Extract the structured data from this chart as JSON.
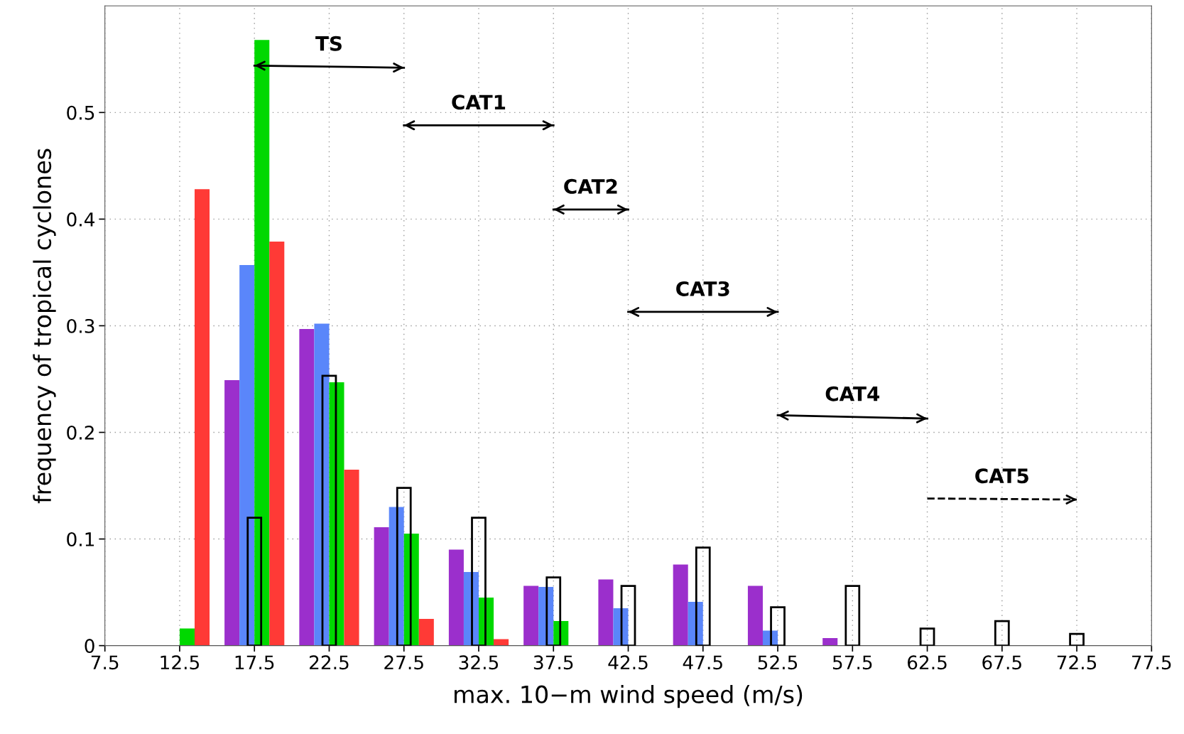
{
  "chart_data": {
    "type": "bar",
    "xlabel": "max. 10−m wind speed (m/s)",
    "ylabel": "frequency of tropical cyclones",
    "xlim": [
      7.5,
      77.5
    ],
    "xticks": [
      7.5,
      12.5,
      17.5,
      22.5,
      27.5,
      32.5,
      37.5,
      42.5,
      47.5,
      52.5,
      57.5,
      62.5,
      67.5,
      72.5,
      77.5
    ],
    "ylim": [
      0,
      0.6
    ],
    "yticks": [
      0,
      0.1,
      0.2,
      0.3,
      0.4,
      0.5
    ],
    "grid": true,
    "legend": false,
    "series": [
      {
        "color": "#9b2fcc",
        "x": [
          16,
          21,
          26,
          31,
          36,
          41,
          46,
          51,
          56
        ],
        "values": [
          0.249,
          0.297,
          0.111,
          0.09,
          0.056,
          0.062,
          0.076,
          0.056,
          0.007
        ]
      },
      {
        "color": "#5a86fa",
        "x": [
          17,
          22,
          27,
          32,
          37,
          42,
          47,
          52
        ],
        "values": [
          0.357,
          0.302,
          0.13,
          0.069,
          0.055,
          0.035,
          0.041,
          0.014
        ]
      },
      {
        "color": "#00d800",
        "x": [
          13,
          18,
          23,
          28,
          33,
          38
        ],
        "values": [
          0.016,
          0.568,
          0.247,
          0.105,
          0.045,
          0.023
        ]
      },
      {
        "color": "#ff3a36",
        "x": [
          14,
          19,
          24,
          29,
          34
        ],
        "values": [
          0.428,
          0.379,
          0.165,
          0.025,
          0.006
        ]
      },
      {
        "color": "#000000",
        "line_style": "solid",
        "x": [
          17.5,
          22.5,
          27.5,
          32.5,
          37.5,
          42.5,
          47.5,
          52.5,
          57.5,
          62.5,
          67.5,
          72.5
        ],
        "values": [
          0.12,
          0.253,
          0.148,
          0.12,
          0.064,
          0.056,
          0.092,
          0.036,
          0.056,
          0.016,
          0.023,
          0.011
        ]
      },
      {
        "type": "line",
        "color": "#000000",
        "line_style": "solid",
        "x": [
          17.5,
          27.5
        ],
        "values": [
          0.544,
          0.542
        ]
      },
      {
        "type": "line",
        "color": "#000000",
        "line_style": "solid",
        "x": [
          27.5,
          37.5
        ],
        "values": [
          0.488,
          0.488
        ]
      },
      {
        "type": "line",
        "color": "#000000",
        "line_style": "solid",
        "x": [
          37.5,
          42.5
        ],
        "values": [
          0.409,
          0.409
        ]
      },
      {
        "type": "line",
        "color": "#000000",
        "line_style": "solid",
        "x": [
          42.5,
          52.5
        ],
        "values": [
          0.313,
          0.313
        ]
      },
      {
        "type": "line",
        "color": "#000000",
        "line_style": "solid",
        "x": [
          52.5,
          62.5
        ],
        "values": [
          0.216,
          0.213
        ]
      },
      {
        "type": "line",
        "color": "#000000",
        "line_style": "dashed",
        "x": [
          62.5,
          72.5
        ],
        "values": [
          0.138,
          0.137
        ]
      }
    ],
    "annotations": [
      {
        "text": "TS",
        "x": 22.5,
        "y": 0.543
      },
      {
        "text": "CAT1",
        "x": 32.5,
        "y": 0.488
      },
      {
        "text": "CAT2",
        "x": 40,
        "y": 0.409
      },
      {
        "text": "CAT3",
        "x": 47.5,
        "y": 0.313
      },
      {
        "text": "CAT4",
        "x": 57.5,
        "y": 0.2145
      },
      {
        "text": "CAT5",
        "x": 67.5,
        "y": 0.1375
      }
    ]
  }
}
